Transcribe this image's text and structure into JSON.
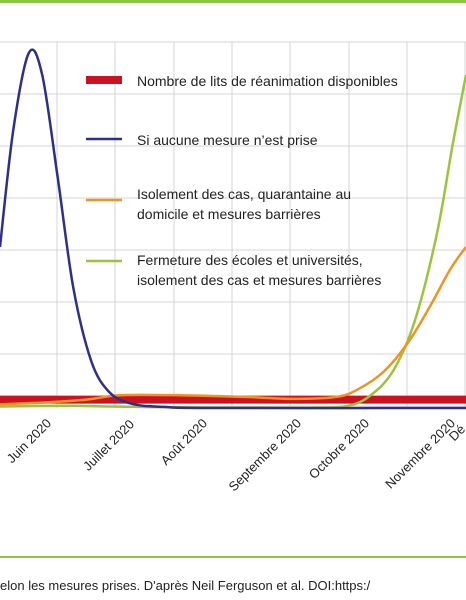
{
  "colors": {
    "frame": "#8dc63f",
    "grid": "#d4d4d4",
    "text": "#222222"
  },
  "caption": "elon les mesures prises. D'après Neil Ferguson et al. DOI:https:/",
  "chart_data": {
    "type": "line",
    "x_type": "date",
    "categories": [
      "Juin 2020",
      "Juillet 2020",
      "Août 2020",
      "Septembre 2020",
      "Octobre 2020",
      "Novembre 2020",
      "Dé"
    ],
    "x_range": [
      "2020-05-12",
      "2020-12-08"
    ],
    "y_range": [
      0,
      100
    ],
    "grid": true,
    "legend_position": "top-right",
    "series": [
      {
        "name": "Nombre de lits de réanimation disponibles",
        "color": "#cc1122",
        "style": "thick-band",
        "points": [
          [
            "2020-05-12",
            2.3
          ],
          [
            "2020-12-08",
            2.3
          ]
        ]
      },
      {
        "name": "Si aucune mesure n’est prise",
        "color": "#2e2f8a",
        "points": [
          [
            "2020-05-12",
            44
          ],
          [
            "2020-05-18",
            76
          ],
          [
            "2020-05-25",
            97
          ],
          [
            "2020-05-31",
            91
          ],
          [
            "2020-06-07",
            63
          ],
          [
            "2020-06-14",
            33
          ],
          [
            "2020-06-22",
            13
          ],
          [
            "2020-06-30",
            4.5
          ],
          [
            "2020-07-10",
            1.2
          ],
          [
            "2020-07-25",
            0.3
          ],
          [
            "2020-08-15",
            0
          ],
          [
            "2020-12-08",
            0
          ]
        ]
      },
      {
        "name": "Isolement des cas, quarantaine au domicile et mesures barrières",
        "color": "#ef9424",
        "points": [
          [
            "2020-05-12",
            1.0
          ],
          [
            "2020-06-01",
            1.5
          ],
          [
            "2020-06-20",
            2.3
          ],
          [
            "2020-07-05",
            3.5
          ],
          [
            "2020-08-01",
            3.5
          ],
          [
            "2020-09-01",
            3.0
          ],
          [
            "2020-09-20",
            2.5
          ],
          [
            "2020-10-10",
            3.0
          ],
          [
            "2020-10-20",
            5.0
          ],
          [
            "2020-11-01",
            10.0
          ],
          [
            "2020-11-12",
            18.0
          ],
          [
            "2020-11-22",
            28.0
          ],
          [
            "2020-12-01",
            38.0
          ],
          [
            "2020-12-08",
            44.0
          ]
        ]
      },
      {
        "name": "Fermeture des écoles et universités, isolement des cas et mesures barrières",
        "color": "#9bc43c",
        "points": [
          [
            "2020-05-12",
            0.4
          ],
          [
            "2020-06-10",
            0.6
          ],
          [
            "2020-07-01",
            0.4
          ],
          [
            "2020-08-01",
            0.2
          ],
          [
            "2020-09-01",
            0.1
          ],
          [
            "2020-10-01",
            0.1
          ],
          [
            "2020-10-15",
            0.5
          ],
          [
            "2020-10-25",
            3.0
          ],
          [
            "2020-11-05",
            10.0
          ],
          [
            "2020-11-15",
            24.0
          ],
          [
            "2020-11-25",
            48.0
          ],
          [
            "2020-12-02",
            72.0
          ],
          [
            "2020-12-08",
            91.0
          ]
        ]
      }
    ]
  }
}
